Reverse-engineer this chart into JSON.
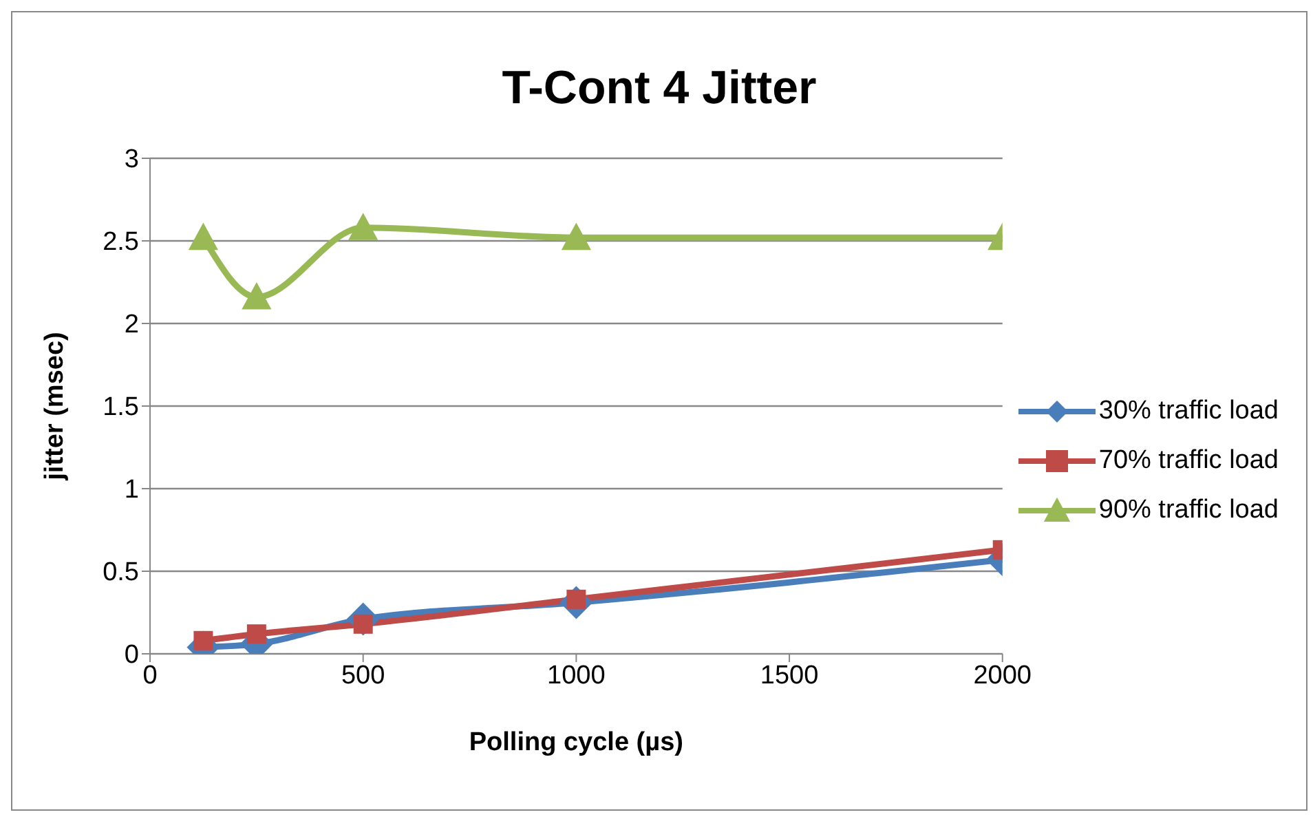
{
  "chart_data": {
    "type": "line",
    "title": "T-Cont 4 Jitter",
    "xlabel": "Polling cycle (µs)",
    "ylabel": "jitter (msec)",
    "x": [
      125,
      250,
      500,
      1000,
      2000
    ],
    "series": [
      {
        "name": "30% traffic load",
        "color": "#4a7ebb",
        "marker": "diamond",
        "values": [
          0.04,
          0.06,
          0.21,
          0.31,
          0.57
        ]
      },
      {
        "name": "70% traffic load",
        "color": "#be4b48",
        "marker": "square",
        "values": [
          0.08,
          0.12,
          0.18,
          0.33,
          0.63
        ]
      },
      {
        "name": "90% traffic load",
        "color": "#98b954",
        "marker": "triangle",
        "values": [
          2.52,
          2.16,
          2.58,
          2.52,
          2.52
        ]
      }
    ],
    "xlim": [
      0,
      2000
    ],
    "xticks": [
      0,
      500,
      1000,
      1500,
      2000
    ],
    "ylim": [
      0,
      3
    ],
    "yticks": [
      0,
      0.5,
      1,
      1.5,
      2,
      2.5,
      3
    ],
    "grid": "y",
    "legend": "right",
    "line_style": "solid"
  }
}
